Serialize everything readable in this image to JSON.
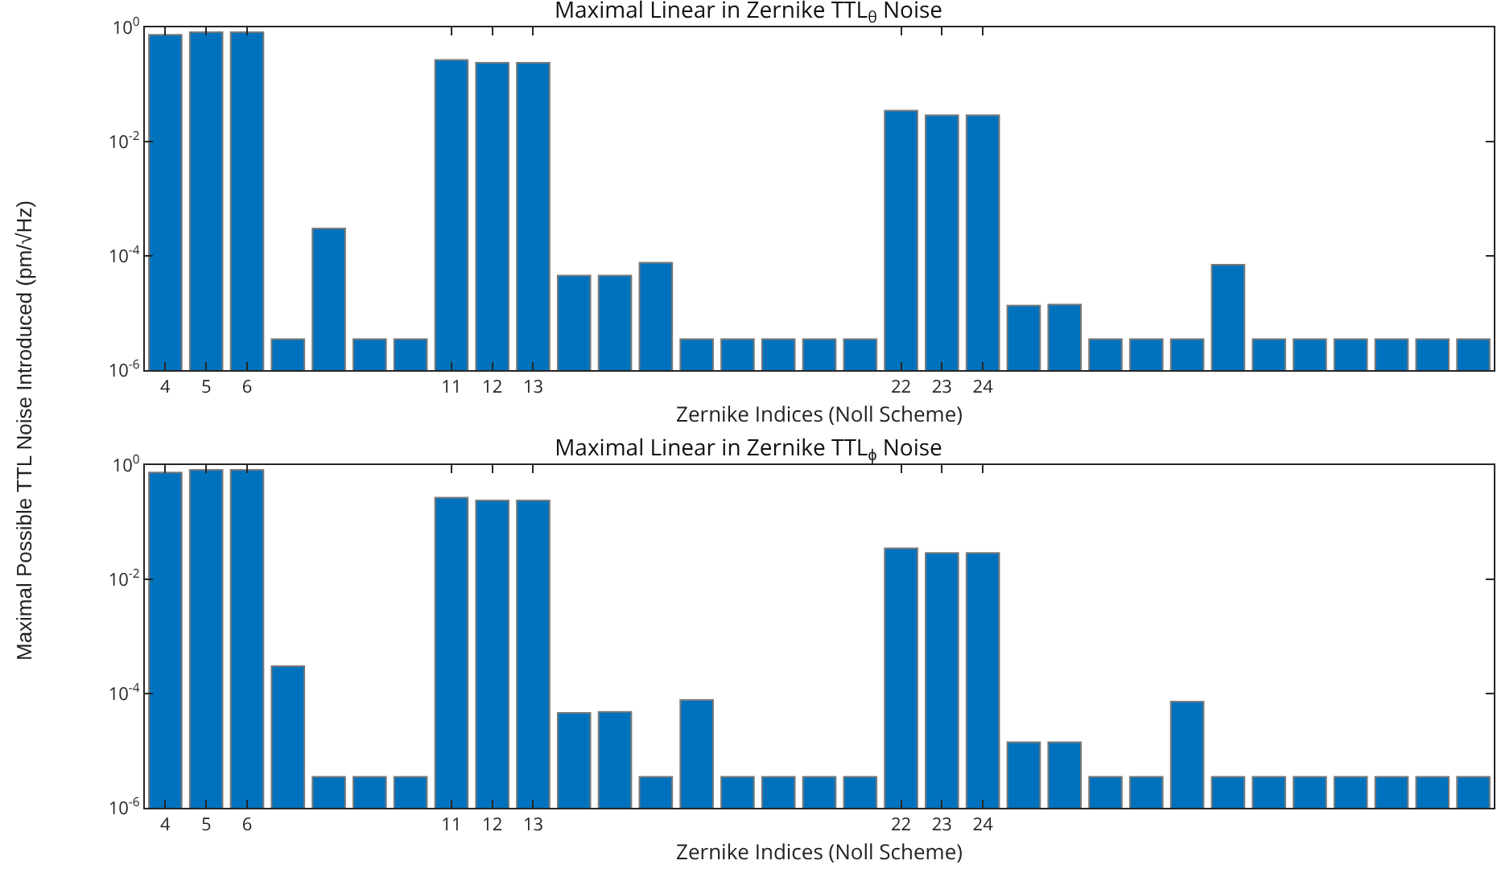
{
  "chart_data": [
    {
      "type": "bar",
      "title": "Maximal Linear in Zernike TTL$_{θ}$ Noise",
      "xlabel": "Zernike Indices (Noll Scheme)",
      "ylabel": "Maximal Possible TTL Noise Introduced (pm/√Hz)",
      "log": true,
      "color": "#0072bd",
      "categories": [
        "4",
        "5",
        "6",
        null,
        null,
        null,
        null,
        "11",
        "12",
        "13",
        null,
        null,
        null,
        null,
        null,
        null,
        null,
        null,
        "22",
        "23",
        "24",
        null,
        null,
        null,
        null,
        null,
        null,
        null,
        null,
        null,
        null,
        null,
        null
      ],
      "values": [
        0.74,
        0.82,
        0.82,
        3.5e-06,
        0.0003,
        3.5e-06,
        3.5e-06,
        0.27,
        0.24,
        0.24,
        4.5e-05,
        4.5e-05,
        7.6e-05,
        3.5e-06,
        3.5e-06,
        3.5e-06,
        3.5e-06,
        3.5e-06,
        0.035,
        0.029,
        0.029,
        1.35e-05,
        1.4e-05,
        3.5e-06,
        3.5e-06,
        3.5e-06,
        7e-05,
        3.5e-06,
        3.5e-06,
        3.5e-06,
        3.5e-06,
        3.5e-06,
        3.5e-06
      ],
      "ylim": [
        1e-06,
        1
      ],
      "yticks": [
        {
          "value": 1e-06,
          "label": "10$^{-6}$"
        },
        {
          "value": 0.0001,
          "label": "10$^{-4}$"
        },
        {
          "value": 0.01,
          "label": "10$^{-2}$"
        },
        {
          "value": 1,
          "label": "10$^{0}$"
        }
      ]
    },
    {
      "type": "bar",
      "title": "Maximal Linear in Zernike TTL$_{ϕ}$ Noise",
      "xlabel": "Zernike Indices (Noll Scheme)",
      "log": true,
      "color": "#0072bd",
      "categories": [
        "4",
        "5",
        "6",
        null,
        null,
        null,
        null,
        "11",
        "12",
        "13",
        null,
        null,
        null,
        null,
        null,
        null,
        null,
        null,
        "22",
        "23",
        "24",
        null,
        null,
        null,
        null,
        null,
        null,
        null,
        null,
        null,
        null,
        null,
        null
      ],
      "values": [
        0.74,
        0.82,
        0.82,
        0.0003,
        3.5e-06,
        3.5e-06,
        3.5e-06,
        0.27,
        0.24,
        0.24,
        4.6e-05,
        4.8e-05,
        3.5e-06,
        7.7e-05,
        3.5e-06,
        3.5e-06,
        3.5e-06,
        3.5e-06,
        0.035,
        0.029,
        0.029,
        1.4e-05,
        1.4e-05,
        3.5e-06,
        3.5e-06,
        7.2e-05,
        3.5e-06,
        3.5e-06,
        3.5e-06,
        3.5e-06,
        3.5e-06,
        3.5e-06,
        3.5e-06
      ],
      "ylim": [
        1e-06,
        1
      ],
      "yticks": [
        {
          "value": 1e-06,
          "label": "10$^{-6}$"
        },
        {
          "value": 0.0001,
          "label": "10$^{-4}$"
        },
        {
          "value": 0.01,
          "label": "10$^{-2}$"
        },
        {
          "value": 1,
          "label": "10$^{0}$"
        }
      ]
    }
  ]
}
